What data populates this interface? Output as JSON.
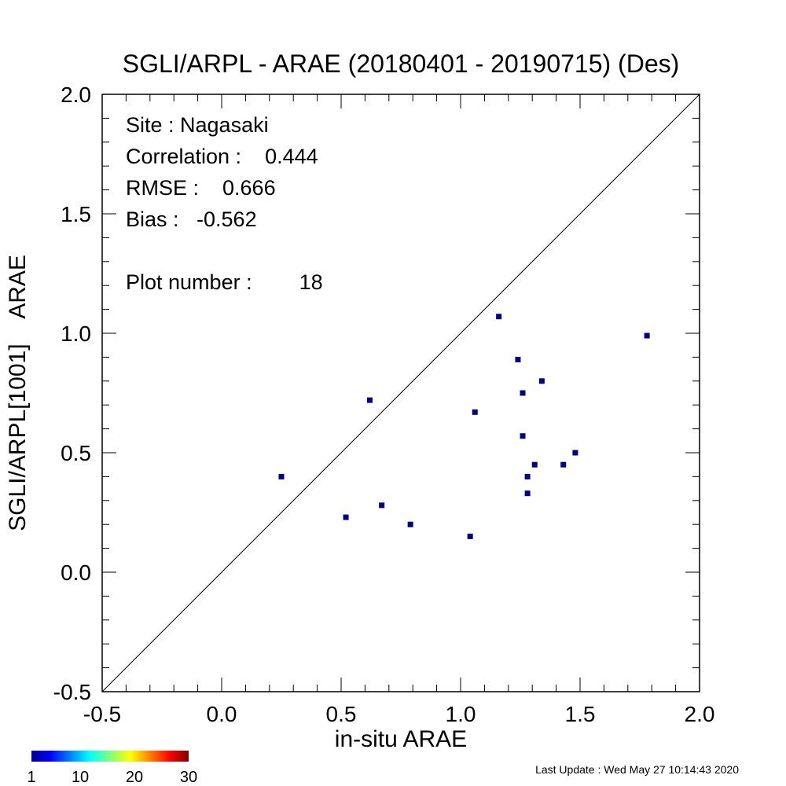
{
  "chart_data": {
    "type": "scatter",
    "title": "SGLI/ARPL - ARAE (20180401 - 20190715) (Des)",
    "xlabel": "in-situ ARAE",
    "ylabel": "SGLI/ARPL[1001]    ARAE",
    "xlim": [
      -0.5,
      2.0
    ],
    "ylim": [
      -0.5,
      2.0
    ],
    "x_ticks": [
      "-0.5",
      "0.0",
      "0.5",
      "1.0",
      "1.5",
      "2.0"
    ],
    "y_ticks": [
      "-0.5",
      "0.0",
      "0.5",
      "1.0",
      "1.5",
      "2.0"
    ],
    "x_tick_values": [
      -0.5,
      0.0,
      0.5,
      1.0,
      1.5,
      2.0
    ],
    "y_tick_values": [
      -0.5,
      0.0,
      0.5,
      1.0,
      1.5,
      2.0
    ],
    "reference_line": "1:1",
    "grid": false,
    "marker_color": "#000080",
    "annotations": [
      "Site : Nagasaki",
      "Correlation :    0.444",
      "RMSE :    0.666",
      "Bias :   -0.562",
      "Plot number :        18"
    ],
    "points": [
      {
        "x": 0.25,
        "y": 0.4
      },
      {
        "x": 0.52,
        "y": 0.23
      },
      {
        "x": 0.62,
        "y": 0.72
      },
      {
        "x": 0.67,
        "y": 0.28
      },
      {
        "x": 0.79,
        "y": 0.2
      },
      {
        "x": 1.04,
        "y": 0.15
      },
      {
        "x": 1.06,
        "y": 0.67
      },
      {
        "x": 1.16,
        "y": 1.07
      },
      {
        "x": 1.24,
        "y": 0.89
      },
      {
        "x": 1.26,
        "y": 0.75
      },
      {
        "x": 1.26,
        "y": 0.57
      },
      {
        "x": 1.28,
        "y": 0.4
      },
      {
        "x": 1.28,
        "y": 0.33
      },
      {
        "x": 1.31,
        "y": 0.45
      },
      {
        "x": 1.34,
        "y": 0.8
      },
      {
        "x": 1.43,
        "y": 0.45
      },
      {
        "x": 1.48,
        "y": 0.5
      },
      {
        "x": 1.78,
        "y": 0.99
      }
    ],
    "colorbar": {
      "labels": [
        "1",
        "10",
        "20",
        "30"
      ],
      "values": [
        1,
        10,
        20,
        30
      ],
      "range": [
        1,
        30
      ]
    }
  },
  "footer": {
    "last_update": "Last Update : Wed May 27 10:14:43 2020"
  }
}
